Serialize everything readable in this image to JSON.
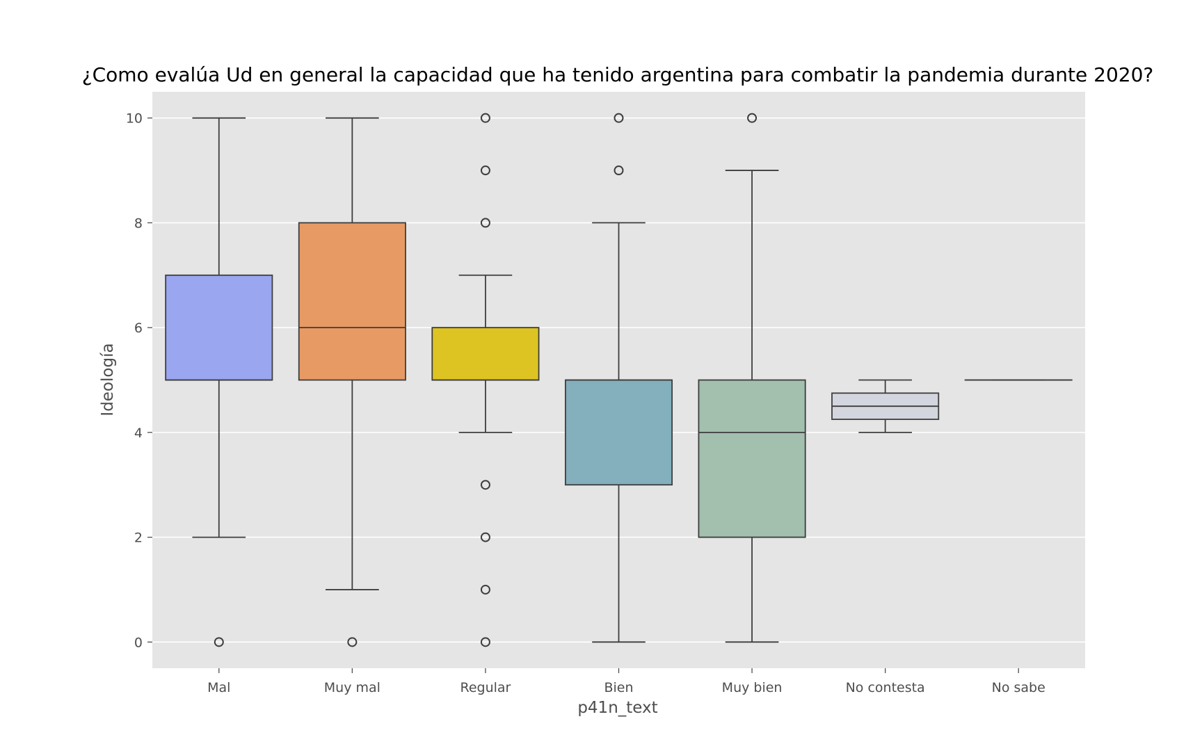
{
  "chart_data": {
    "type": "box",
    "title": "¿Como evalúa Ud en general la capacidad que ha tenido argentina para combatir la pandemia durante 2020?",
    "xlabel": "p41n_text",
    "ylabel": "Ideología",
    "ylim": [
      -0.5,
      10.5
    ],
    "yticks": [
      0,
      2,
      4,
      6,
      8,
      10
    ],
    "grid": true,
    "background": "#e5e5e5",
    "categories": [
      "Mal",
      "Muy mal",
      "Regular",
      "Bien",
      "Muy bien",
      "No contesta",
      "No sabe"
    ],
    "boxes": [
      {
        "category": "Mal",
        "whisker_low": 2,
        "q1": 5,
        "median": 5,
        "q3": 7,
        "whisker_high": 10,
        "outliers": [
          0
        ],
        "color": "#9aa6f0"
      },
      {
        "category": "Muy mal",
        "whisker_low": 1,
        "q1": 5,
        "median": 6,
        "q3": 8,
        "whisker_high": 10,
        "outliers": [
          0
        ],
        "color": "#e89a64"
      },
      {
        "category": "Regular",
        "whisker_low": 4,
        "q1": 5,
        "median": 5,
        "q3": 6,
        "whisker_high": 7,
        "outliers": [
          0,
          1,
          2,
          3,
          8,
          9,
          10
        ],
        "color": "#dec422"
      },
      {
        "category": "Bien",
        "whisker_low": 0,
        "q1": 3,
        "median": 5,
        "q3": 5,
        "whisker_high": 8,
        "outliers": [
          9,
          10
        ],
        "color": "#84afbc"
      },
      {
        "category": "Muy bien",
        "whisker_low": 0,
        "q1": 2,
        "median": 4,
        "q3": 5,
        "whisker_high": 9,
        "outliers": [
          10
        ],
        "color": "#a3bfae"
      },
      {
        "category": "No contesta",
        "whisker_low": 4,
        "q1": 4.25,
        "median": 4.5,
        "q3": 4.75,
        "whisker_high": 5,
        "outliers": [],
        "color": "#d3d5df"
      },
      {
        "category": "No sabe",
        "whisker_low": 5,
        "q1": 5,
        "median": 5,
        "q3": 5,
        "whisker_high": 5,
        "outliers": [],
        "color": "#e0e0e0"
      }
    ]
  }
}
